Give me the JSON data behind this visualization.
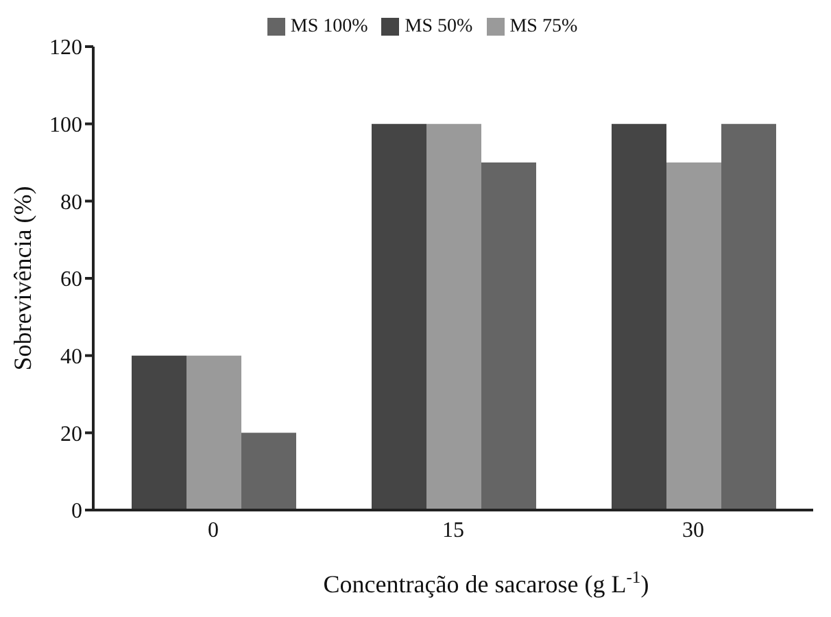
{
  "chart_data": {
    "type": "bar",
    "xlabel": "Concentração de sacarose (g L$^{-1}$)",
    "ylabel": "Sobrevivência (%)",
    "categories": [
      "0",
      "15",
      "30"
    ],
    "series": [
      {
        "name": "MS 50%",
        "color": "#454545",
        "values": [
          40,
          100,
          100
        ]
      },
      {
        "name": "MS 75%",
        "color": "#9a9a9a",
        "values": [
          40,
          100,
          90
        ]
      },
      {
        "name": "MS 100%",
        "color": "#656565",
        "values": [
          20,
          90,
          100
        ]
      }
    ],
    "ylim": [
      0,
      120
    ],
    "yticks": [
      0,
      20,
      40,
      60,
      80,
      100,
      120
    ],
    "grid": false,
    "legend": "top"
  }
}
